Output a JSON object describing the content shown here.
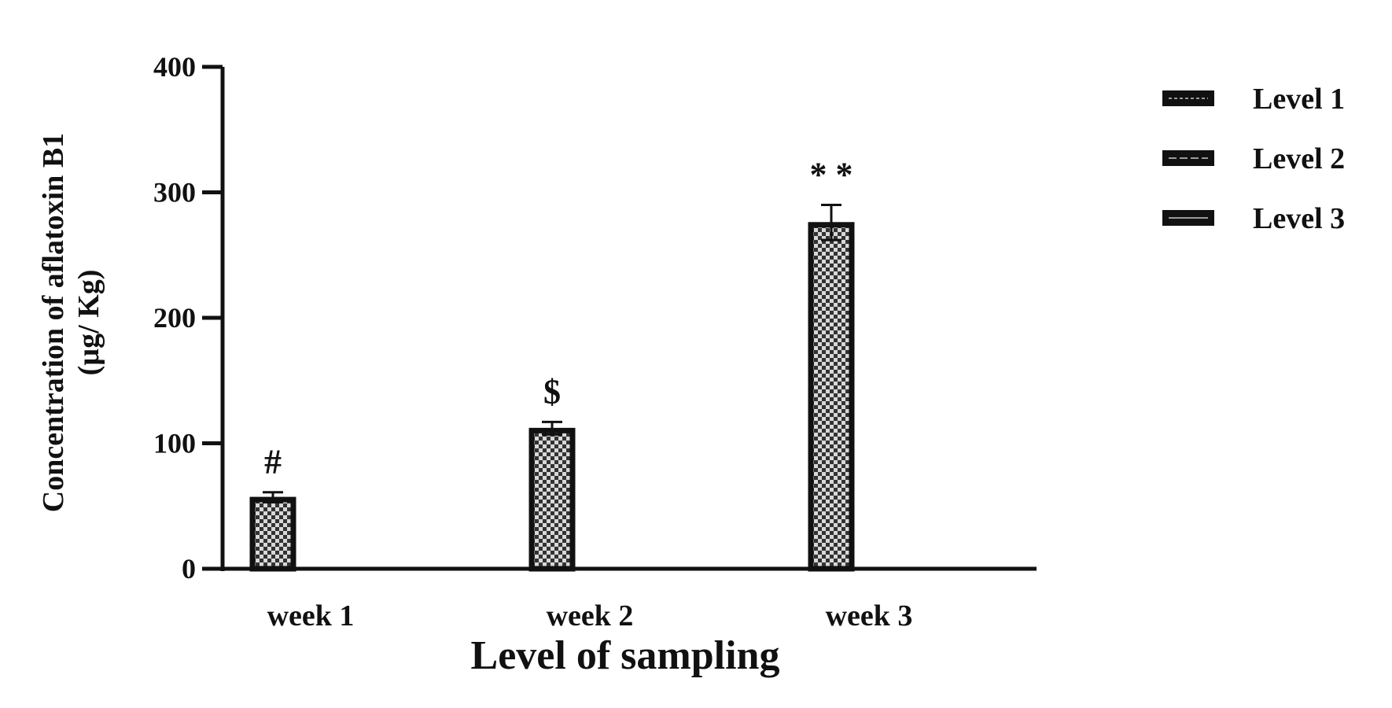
{
  "chart_data": {
    "type": "bar",
    "categories": [
      "week 1",
      "week 2",
      "week 3"
    ],
    "series": [
      {
        "name": "Level 1",
        "values": [
          57,
          112,
          276
        ],
        "errors": [
          4,
          5,
          14
        ]
      },
      {
        "name": "Level 2",
        "values": [
          0,
          0,
          0
        ],
        "errors": [
          0,
          0,
          0
        ]
      },
      {
        "name": "Level 3",
        "values": [
          0,
          0,
          1
        ],
        "errors": [
          0,
          0,
          0
        ]
      }
    ],
    "annotations": [
      "#",
      "$",
      "* *"
    ],
    "xlabel": "Level of sampling",
    "ylabel_line1": "Concentration of aflatoxin B1",
    "ylabel_line2": "(µg/ Kg)",
    "ylim": [
      0,
      400
    ],
    "yticks": [
      0,
      100,
      200,
      300,
      400
    ],
    "grid": false,
    "legend_position": "top-right",
    "colors": {
      "axis": "#111111",
      "bar_edge": "#111111",
      "check_dark": "#333333",
      "check_light": "#d8d8d8"
    }
  }
}
